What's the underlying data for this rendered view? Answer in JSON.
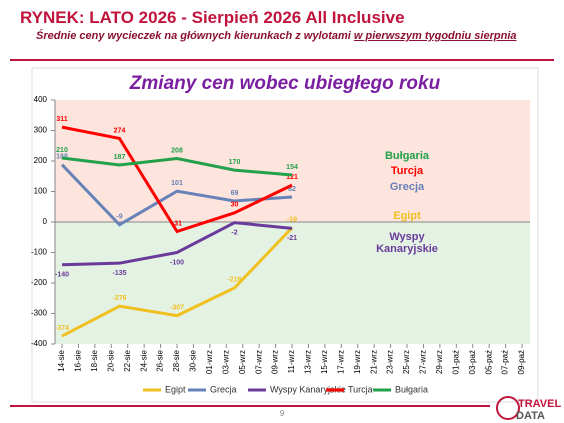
{
  "header": {
    "title": "RYNEK: LATO 2026 - Sierpień 2026 All Inclusive",
    "subtitle": "Średnie ceny wycieczek na głównych kierunkach z wylotami",
    "subtitle_emphasis": "w pierwszym tygodniu sierpnia"
  },
  "chart_data": {
    "type": "line",
    "title": "Zmiany cen wobec ubiegłego roku",
    "xticks": [
      "14-sie",
      "16-sie",
      "18-sie",
      "20-sie",
      "22-sie",
      "24-sie",
      "26-sie",
      "28-sie",
      "30-sie",
      "01-wrz",
      "03-wrz",
      "05-wrz",
      "07-wrz",
      "09-wrz",
      "11-wrz",
      "13-wrz",
      "15-wrz",
      "17-wrz",
      "19-wrz",
      "21-wrz",
      "23-wrz",
      "25-wrz",
      "27-wrz",
      "29-wrz",
      "01-paź",
      "03-paź",
      "05-paź",
      "07-paź",
      "09-paź"
    ],
    "x": [
      "14-sie",
      "21-sie",
      "28-sie",
      "04-wrz",
      "11-wrz"
    ],
    "ylim": [
      -400,
      400
    ],
    "yticks": [
      -400,
      -300,
      -200,
      -100,
      0,
      100,
      200,
      300,
      400
    ],
    "grid": false,
    "legend": "bottom",
    "series": [
      {
        "name": "Egipt",
        "color": "#f0c020",
        "values": [
          -374,
          -276,
          -307,
          -216,
          -19
        ]
      },
      {
        "name": "Grecja",
        "color": "#6682b8",
        "values": [
          188,
          -9,
          101,
          69,
          82
        ]
      },
      {
        "name": "Wyspy Kanaryjskie",
        "color": "#6a3a9a",
        "values": [
          -140,
          -135,
          -100,
          -2,
          -21
        ]
      },
      {
        "name": "Turcja",
        "color": "#ff0000",
        "values": [
          311,
          274,
          -31,
          30,
          121
        ]
      },
      {
        "name": "Bułgaria",
        "color": "#22a04a",
        "values": [
          210,
          187,
          208,
          170,
          154
        ]
      }
    ]
  },
  "footer": {
    "page_number": "9",
    "logo_top": "TRAVEL",
    "logo_bottom": "DATA"
  }
}
